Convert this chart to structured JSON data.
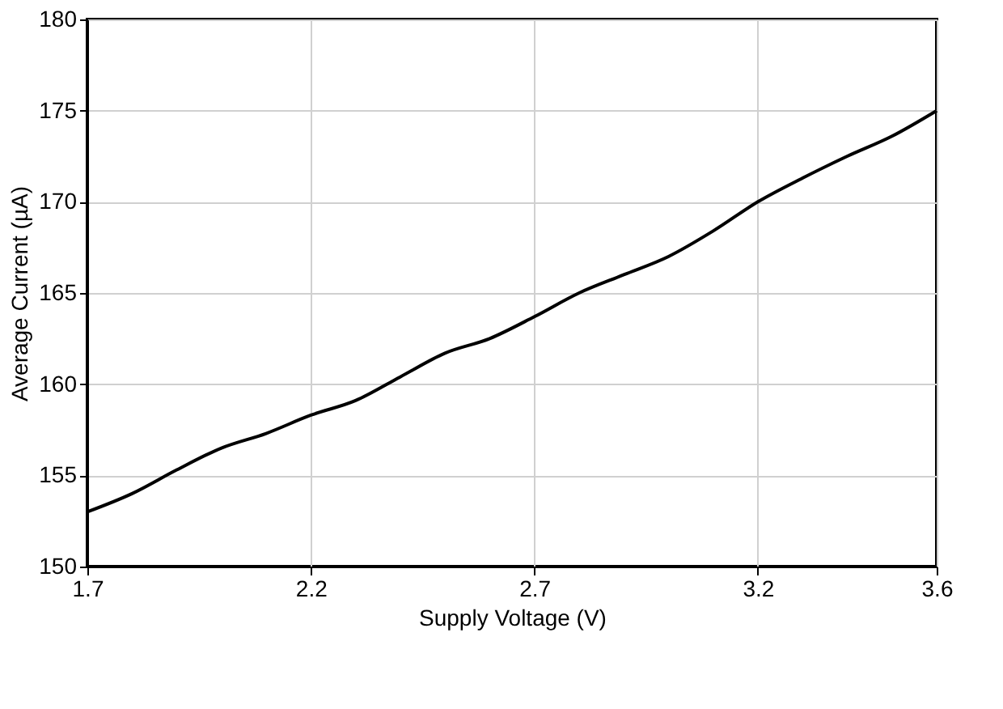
{
  "chart_data": {
    "type": "line",
    "xlabel": "Supply Voltage (V)",
    "ylabel": "Average Current (µA)",
    "x": [
      1.7,
      1.8,
      1.9,
      2.0,
      2.1,
      2.2,
      2.3,
      2.4,
      2.5,
      2.6,
      2.7,
      2.8,
      2.9,
      3.0,
      3.1,
      3.2,
      3.3,
      3.4,
      3.5,
      3.6
    ],
    "series": [
      {
        "color": "#000000",
        "values": [
          153.0,
          154.0,
          155.3,
          156.5,
          157.3,
          158.3,
          159.1,
          160.4,
          161.7,
          162.5,
          163.7,
          165.0,
          166.0,
          167.0,
          168.4,
          170.0,
          171.3,
          172.5,
          173.6,
          175.0
        ]
      }
    ],
    "xlim": [
      1.7,
      3.6
    ],
    "ylim": [
      150,
      180
    ],
    "xticks": [
      1.7,
      2.2,
      2.7,
      3.2,
      3.6
    ],
    "yticks": [
      150,
      155,
      160,
      165,
      170,
      175,
      180
    ],
    "grid": true,
    "marker": "none",
    "line_style": "solid"
  }
}
